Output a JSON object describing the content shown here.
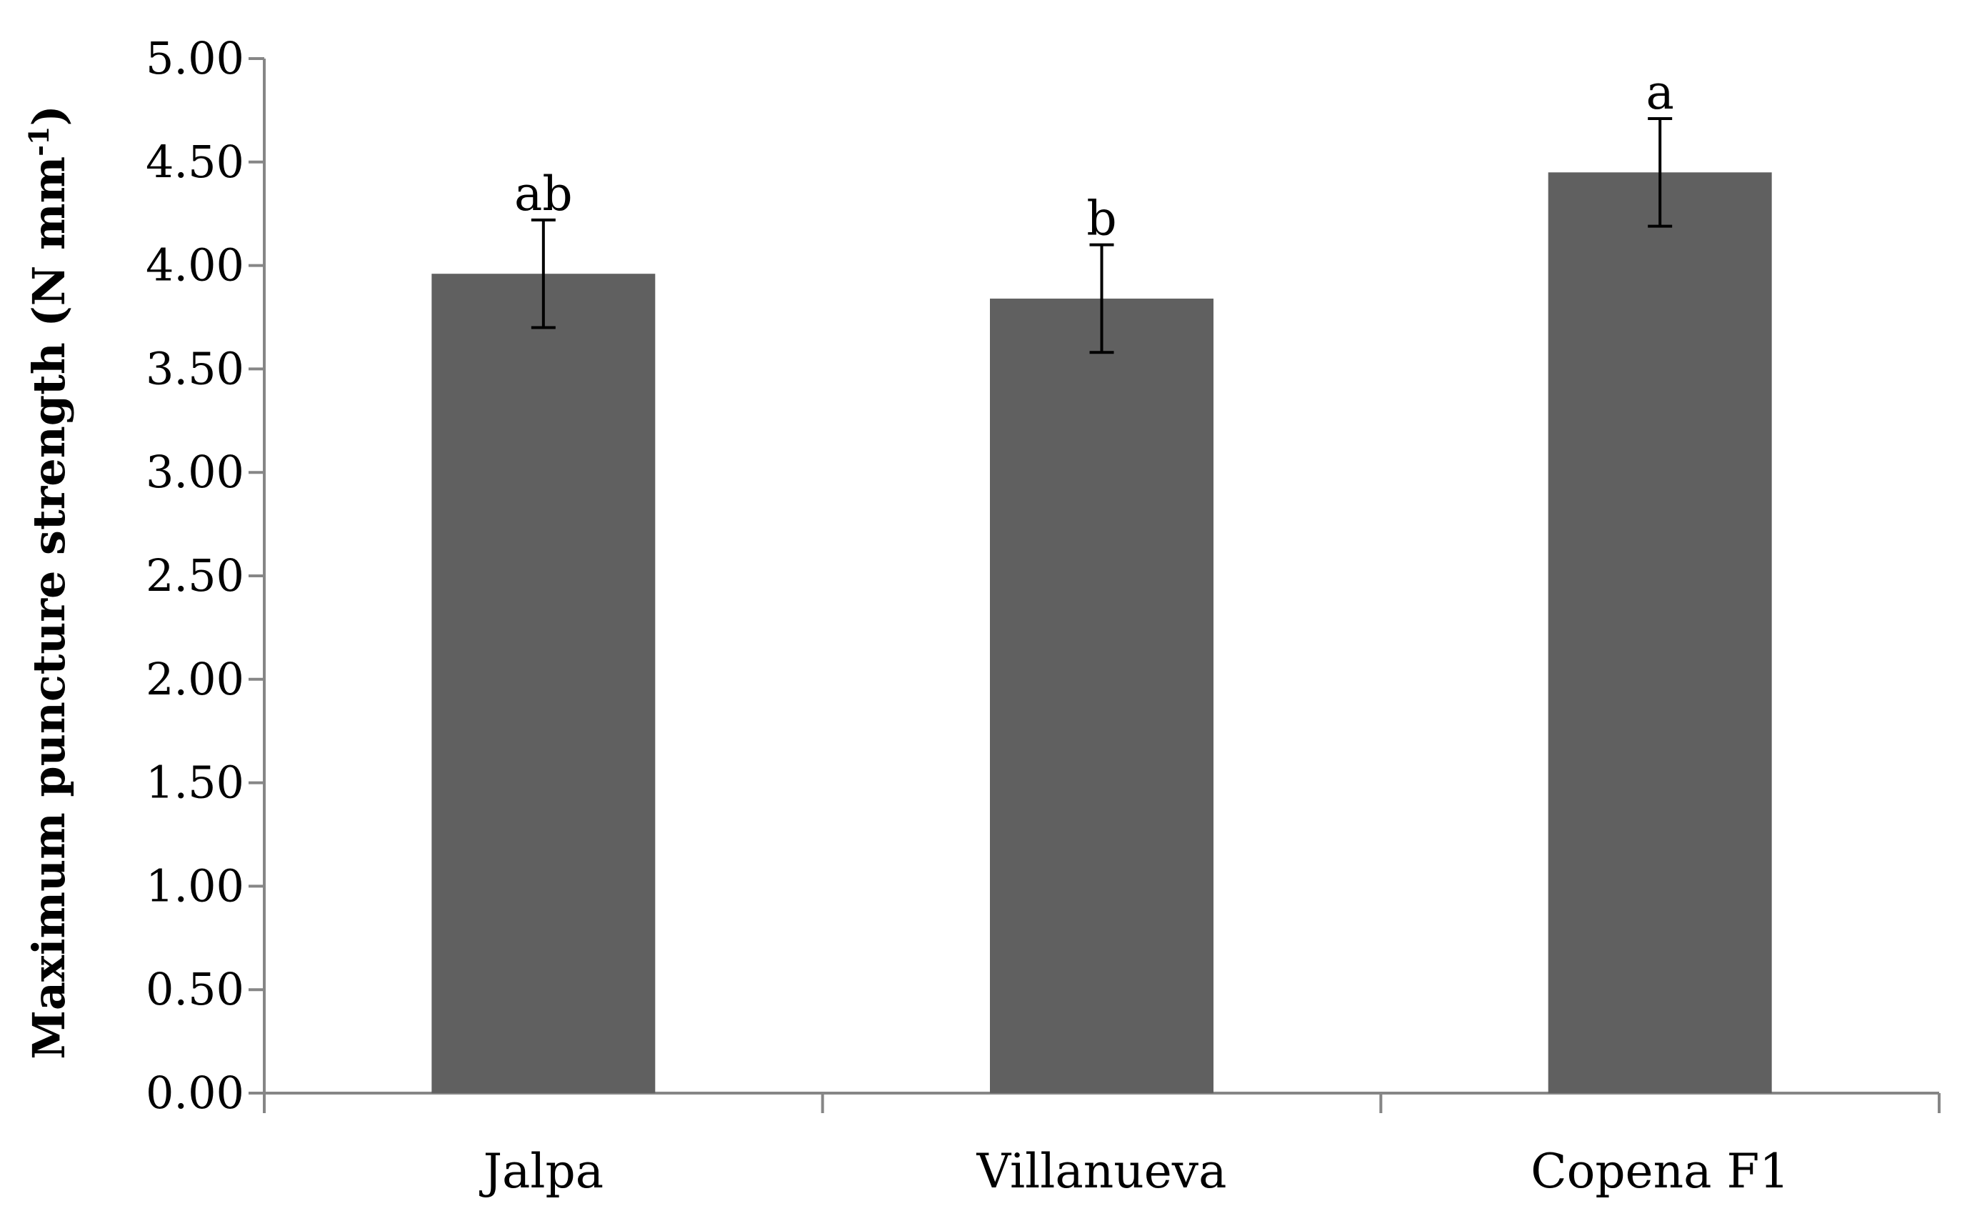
{
  "chart_data": {
    "type": "bar",
    "title": "",
    "xlabel": "",
    "ylabel": "Maximum puncture strength (N mm-1)",
    "ylabel_parts": {
      "main": "Maximum puncture strength (N mm",
      "superscript": "-1",
      "suffix": ")"
    },
    "categories": [
      "Jalpa",
      "Villanueva",
      "Copena F1"
    ],
    "values": [
      3.96,
      3.84,
      4.45
    ],
    "error": [
      0.26,
      0.26,
      0.26
    ],
    "significance_labels": [
      "ab",
      "b",
      "a"
    ],
    "ylim": [
      0,
      5
    ],
    "yticks": [
      0,
      0.5,
      1,
      1.5,
      2,
      2.5,
      3,
      3.5,
      4,
      4.5,
      5
    ],
    "ytick_labels": [
      "0.00",
      "0.50",
      "1.00",
      "1.50",
      "2.00",
      "2.50",
      "3.00",
      "3.50",
      "4.00",
      "4.50",
      "5.00"
    ],
    "grid": false,
    "legend": "none",
    "bar_color": "#606060",
    "axis_color": "#868686",
    "error_bar_color": "#000000"
  }
}
